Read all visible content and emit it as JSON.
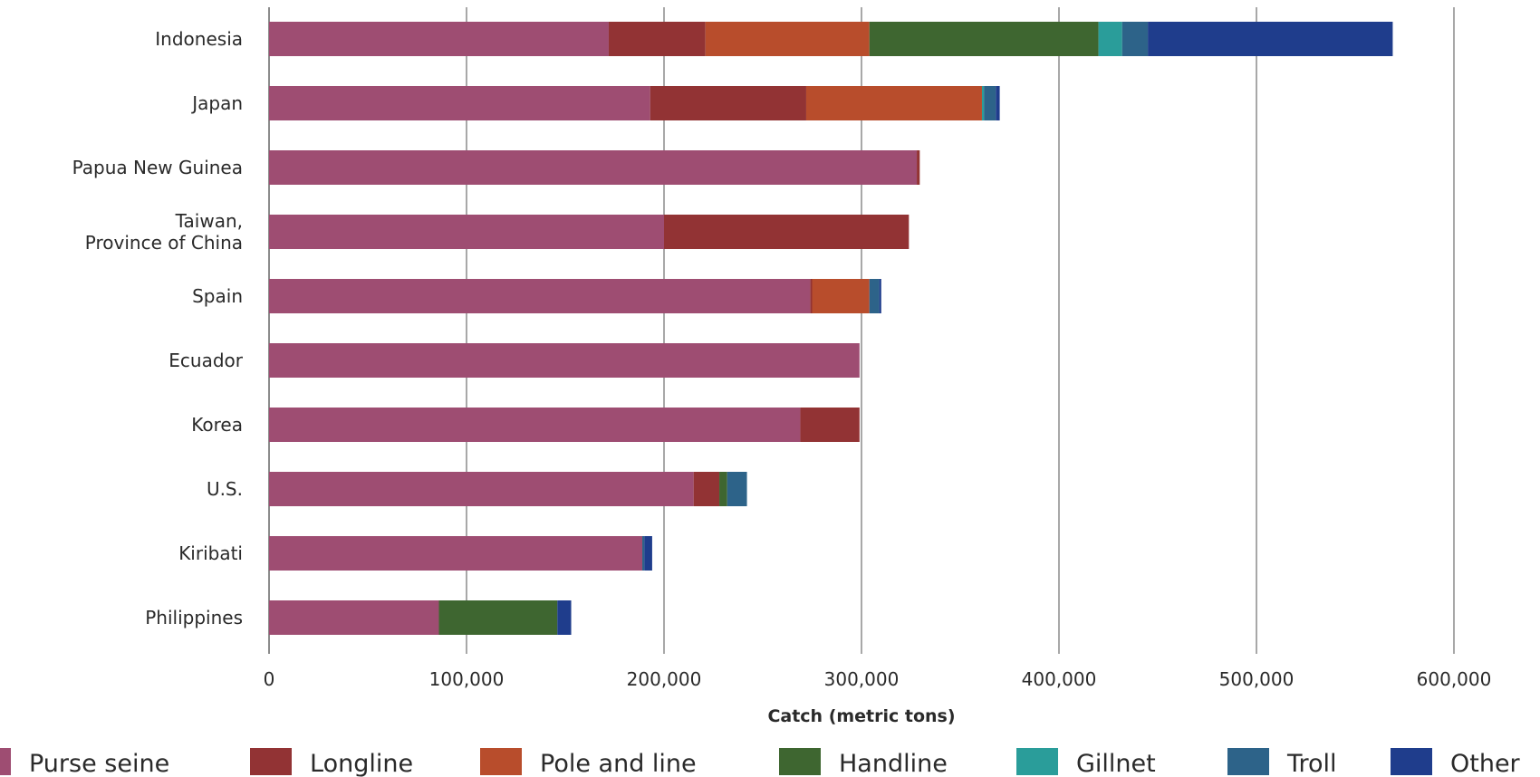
{
  "chart_data": {
    "type": "bar",
    "orientation": "horizontal",
    "stacked": true,
    "title": "",
    "xlabel": "Catch (metric tons)",
    "ylabel": "",
    "xlim": [
      0,
      600000
    ],
    "x_ticks": [
      0,
      100000,
      200000,
      300000,
      400000,
      500000,
      600000
    ],
    "x_tick_labels": [
      "0",
      "100,000",
      "200,000",
      "300,000",
      "400,000",
      "500,000",
      "600,000"
    ],
    "grid": "vertical",
    "legend_position": "bottom",
    "categories": [
      [
        "Indonesia"
      ],
      [
        "Japan"
      ],
      [
        "Papua New Guinea"
      ],
      [
        "Taiwan,",
        "Province of China"
      ],
      [
        "Spain"
      ],
      [
        "Ecuador"
      ],
      [
        "Korea"
      ],
      [
        "U.S."
      ],
      [
        "Kiribati"
      ],
      [
        "Philippines"
      ]
    ],
    "series": [
      {
        "name": "Purse seine",
        "color": "#9e4d72",
        "values": [
          172000,
          193000,
          328000,
          200000,
          274000,
          299000,
          269000,
          215000,
          189000,
          86000
        ]
      },
      {
        "name": "Longline",
        "color": "#923334",
        "values": [
          49000,
          79000,
          1500,
          124000,
          1000,
          0,
          30000,
          13000,
          0,
          0
        ]
      },
      {
        "name": "Pole and line",
        "color": "#b84d2c",
        "values": [
          83000,
          89000,
          0,
          0,
          29000,
          0,
          0,
          0,
          0,
          0
        ]
      },
      {
        "name": "Handline",
        "color": "#3e6630",
        "values": [
          116000,
          0,
          0,
          0,
          0,
          0,
          0,
          4000,
          0,
          60000
        ]
      },
      {
        "name": "Gillnet",
        "color": "#2a9d9a",
        "values": [
          12000,
          1000,
          0,
          0,
          0,
          0,
          0,
          0,
          0,
          0
        ]
      },
      {
        "name": "Troll",
        "color": "#2d6389",
        "values": [
          13000,
          6000,
          0,
          0,
          5000,
          0,
          0,
          10000,
          1000,
          0
        ]
      },
      {
        "name": "Other",
        "color": "#1f3d8c",
        "values": [
          124000,
          2000,
          0,
          0,
          1000,
          0,
          0,
          0,
          4000,
          7000
        ]
      }
    ]
  }
}
